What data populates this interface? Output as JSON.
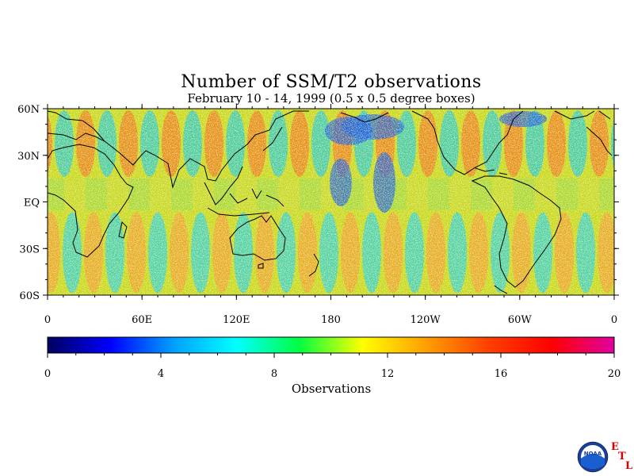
{
  "title": "Number of SSM/T2 observations",
  "subtitle": "February 10 - 14, 1999 (0.5 x 0.5 degree boxes)",
  "map": {
    "projection": "equirectangular",
    "lon_range": [
      0,
      360
    ],
    "lat_range": [
      -60,
      60
    ],
    "lat_ticks": [
      "60N",
      "30N",
      "EQ",
      "30S",
      "60S"
    ],
    "lon_ticks": [
      "0",
      "60E",
      "120E",
      "180",
      "120W",
      "60W",
      "0"
    ],
    "field": "number of SSM/T2 observations per 0.5 x 0.5 degree box",
    "coastlines": true
  },
  "colorbar": {
    "min": 0,
    "max": 20,
    "ticks": [
      "0",
      "4",
      "8",
      "12",
      "16",
      "20"
    ],
    "label": "Observations",
    "colors": [
      "#000060",
      "#0000ff",
      "#00a0ff",
      "#00ffff",
      "#00ff40",
      "#ffff00",
      "#ffa000",
      "#ff4000",
      "#ff0000",
      "#e000a0"
    ]
  },
  "logo": {
    "name": "noaa-logo",
    "text": "NOAA",
    "etl": [
      "E",
      "T",
      "L"
    ]
  }
}
